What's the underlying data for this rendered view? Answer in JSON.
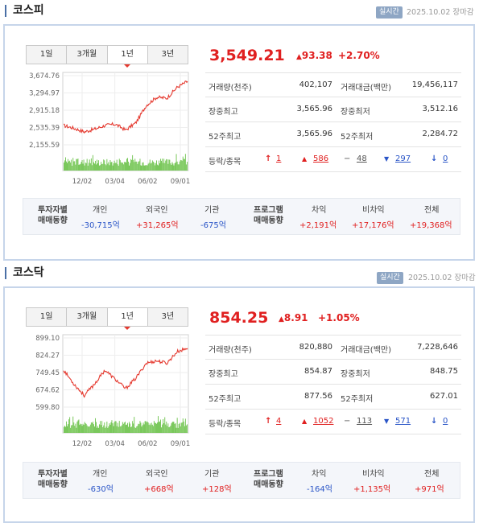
{
  "kospi": {
    "title": "코스피",
    "realtime_label": "실시간",
    "date": "2025.10.02 장마감",
    "tabs": [
      "1일",
      "3개월",
      "1년",
      "3년"
    ],
    "active_tab": "1년",
    "price": "3,549.21",
    "change": "93.38",
    "change_pct": "+2.70%",
    "volume_label": "거래량(천주)",
    "volume": "402,107",
    "amount_label": "거래대금(백만)",
    "amount": "19,456,117",
    "high_label": "장중최고",
    "high": "3,565.96",
    "low_label": "장중최저",
    "low": "3,512.16",
    "w52_high_label": "52주최고",
    "w52_high": "3,565.96",
    "w52_low_label": "52주최저",
    "w52_low": "2,284.72",
    "adv_label": "등락/종목",
    "upper": "1",
    "up": "586",
    "flat": "48",
    "down": "297",
    "lower": "0",
    "investor_label_1": "투자자별",
    "investor_label_2": "매매동향",
    "individual_label": "개인",
    "individual": "-30,715억",
    "foreign_label": "외국인",
    "foreign": "+31,265억",
    "institution_label": "기관",
    "institution": "-675억",
    "program_label_1": "프로그램",
    "program_label_2": "매매동향",
    "arb_label": "차익",
    "arb": "+2,191억",
    "nonarb_label": "비차익",
    "nonarb": "+17,176억",
    "total_label": "전체",
    "total": "+19,368억"
  },
  "kosdaq": {
    "title": "코스닥",
    "realtime_label": "실시간",
    "date": "2025.10.02 장마감",
    "tabs": [
      "1일",
      "3개월",
      "1년",
      "3년"
    ],
    "active_tab": "1년",
    "price": "854.25",
    "change": "8.91",
    "change_pct": "+1.05%",
    "volume_label": "거래량(천주)",
    "volume": "820,880",
    "amount_label": "거래대금(백만)",
    "amount": "7,228,646",
    "high_label": "장중최고",
    "high": "854.87",
    "low_label": "장중최저",
    "low": "848.75",
    "w52_high_label": "52주최고",
    "w52_high": "877.56",
    "w52_low_label": "52주최저",
    "w52_low": "627.01",
    "adv_label": "등락/종목",
    "upper": "4",
    "up": "1052",
    "flat": "113",
    "down": "571",
    "lower": "0",
    "investor_label_1": "투자자별",
    "investor_label_2": "매매동향",
    "individual_label": "개인",
    "individual": "-630억",
    "foreign_label": "외국인",
    "foreign": "+668억",
    "institution_label": "기관",
    "institution": "+128억",
    "program_label_1": "프로그램",
    "program_label_2": "매매동향",
    "arb_label": "차익",
    "arb": "-164억",
    "nonarb_label": "비차익",
    "nonarb": "+1,135억",
    "total_label": "전체",
    "total": "+971억"
  },
  "chart_data": [
    {
      "type": "line",
      "title": "코스피",
      "x_ticks": [
        "12/02",
        "03/04",
        "06/02",
        "09/01"
      ],
      "y_ticks": [
        "3,674.76",
        "3,294.97",
        "2,915.18",
        "2,535.39",
        "2,155.59"
      ],
      "ylim": [
        2155.59,
        3674.76
      ],
      "x": [
        "2024-10",
        "2024-11",
        "2024-12",
        "2025-01",
        "2025-02",
        "2025-03",
        "2025-04",
        "2025-05",
        "2025-06",
        "2025-07",
        "2025-08",
        "2025-09",
        "2025-10"
      ],
      "values": [
        2580,
        2520,
        2440,
        2500,
        2580,
        2610,
        2480,
        2640,
        3020,
        3200,
        3180,
        3420,
        3549.21
      ],
      "has_volume_bars": true,
      "grid": true
    },
    {
      "type": "line",
      "title": "코스닥",
      "x_ticks": [
        "12/02",
        "03/04",
        "06/02",
        "09/01"
      ],
      "y_ticks": [
        "899.10",
        "824.27",
        "749.45",
        "674.62",
        "599.80"
      ],
      "ylim": [
        599.8,
        899.1
      ],
      "x": [
        "2024-10",
        "2024-11",
        "2024-12",
        "2025-01",
        "2025-02",
        "2025-03",
        "2025-04",
        "2025-05",
        "2025-06",
        "2025-07",
        "2025-08",
        "2025-09",
        "2025-10"
      ],
      "values": [
        760,
        700,
        650,
        700,
        760,
        720,
        680,
        725,
        790,
        800,
        790,
        840,
        854.25
      ],
      "has_volume_bars": true,
      "grid": true
    }
  ]
}
